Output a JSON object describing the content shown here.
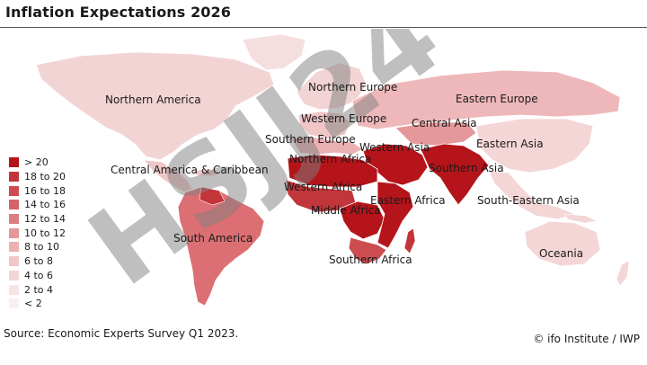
{
  "title": "Inflation Expectations 2026",
  "legend": [
    {
      "label": "> 20",
      "color": "#b5141a"
    },
    {
      "label": "18 to 20",
      "color": "#c2353a"
    },
    {
      "label": "16 to 18",
      "color": "#cc4c50"
    },
    {
      "label": "14 to 16",
      "color": "#d46367"
    },
    {
      "label": "12 to 14",
      "color": "#dc7d80"
    },
    {
      "label": "10 to 12",
      "color": "#e4989a"
    },
    {
      "label": "8 to 10",
      "color": "#eab0b2"
    },
    {
      "label": "6 to 8",
      "color": "#f0c6c7"
    },
    {
      "label": "4 to 6",
      "color": "#f4d6d7"
    },
    {
      "label": "2 to 4",
      "color": "#f7e4e4"
    },
    {
      "label": "< 2",
      "color": "#faf0f0"
    }
  ],
  "regions": [
    {
      "name": "Northern America",
      "class": "6 to 8"
    },
    {
      "name": "Northern Europe",
      "class": "4 to 6"
    },
    {
      "name": "Eastern Europe",
      "class": "8 to 10"
    },
    {
      "name": "Western Europe",
      "class": "6 to 8"
    },
    {
      "name": "Central Asia",
      "class": "10 to 12"
    },
    {
      "name": "Southern Europe",
      "class": "6 to 8"
    },
    {
      "name": "Western Asia",
      "class": "> 20"
    },
    {
      "name": "Eastern Asia",
      "class": "2 to 4"
    },
    {
      "name": "Northern Africa",
      "class": "> 20"
    },
    {
      "name": "Southern Asia",
      "class": "> 20"
    },
    {
      "name": "Central America & Caribbean",
      "class": "6 to 8"
    },
    {
      "name": "Western Africa",
      "class": "> 20"
    },
    {
      "name": "Eastern Africa",
      "class": "> 20"
    },
    {
      "name": "Middle Africa",
      "class": "> 20"
    },
    {
      "name": "South-Eastern Asia",
      "class": "2 to 4"
    },
    {
      "name": "South America",
      "class": "12 to 14"
    },
    {
      "name": "Oceania",
      "class": "4 to 6"
    },
    {
      "name": "Southern Africa",
      "class": "16 to 18"
    }
  ],
  "watermark_text": "HSJJ24",
  "source": "Source: Economic Experts Survey Q1 2023.",
  "credit": "© ifo Institute / IWP"
}
